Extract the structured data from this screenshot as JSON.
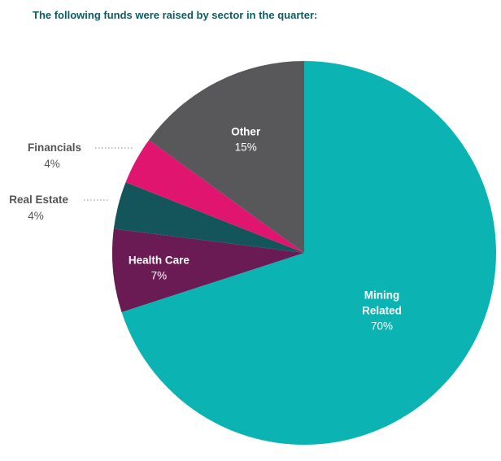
{
  "chart_data": {
    "type": "pie",
    "title": "The following funds were raised by sector in the quarter:",
    "slices": [
      {
        "label_lines": [
          "Mining",
          "Related"
        ],
        "value": 70,
        "value_label": "70%",
        "color": "#0bb3b3",
        "label_color": "#ffffff",
        "label_placement": "inside"
      },
      {
        "label_lines": [
          "Health Care"
        ],
        "value": 7,
        "value_label": "7%",
        "color": "#6b1b54",
        "label_color": "#ffffff",
        "label_placement": "inside"
      },
      {
        "label_lines": [
          "Real Estate"
        ],
        "value": 4,
        "value_label": "4%",
        "color": "#13555a",
        "label_color": "#555555",
        "label_placement": "outside"
      },
      {
        "label_lines": [
          "Financials"
        ],
        "value": 4,
        "value_label": "4%",
        "color": "#e0156f",
        "label_color": "#555555",
        "label_placement": "outside"
      },
      {
        "label_lines": [
          "Other"
        ],
        "value": 15,
        "value_label": "15%",
        "color": "#58585a",
        "label_color": "#ffffff",
        "label_placement": "inside"
      }
    ],
    "start_angle": "12 o'clock",
    "direction": "clockwise",
    "legend": "none"
  }
}
